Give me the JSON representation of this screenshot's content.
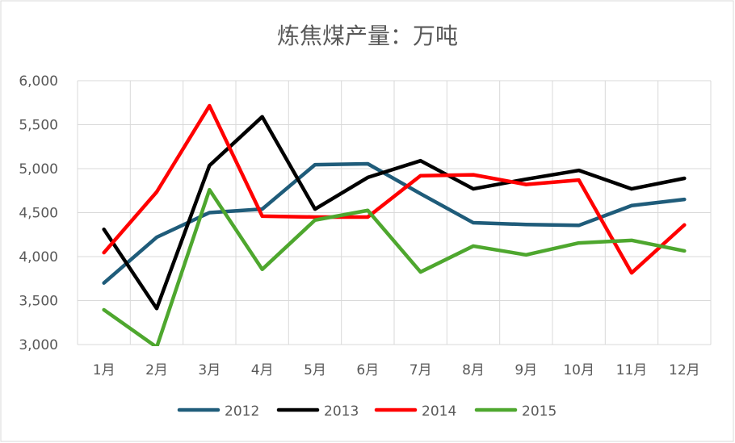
{
  "chart_data": {
    "type": "line",
    "title": "炼焦煤产量：万吨",
    "xlabel": "",
    "ylabel": "",
    "categories": [
      "1月",
      "2月",
      "3月",
      "4月",
      "5月",
      "6月",
      "7月",
      "8月",
      "9月",
      "10月",
      "11月",
      "12月"
    ],
    "ylim": [
      3000,
      6000
    ],
    "yticks": [
      3000,
      3500,
      4000,
      4500,
      5000,
      5500,
      6000
    ],
    "ytick_labels": [
      "3,000",
      "3,500",
      "4,000",
      "4,500",
      "5,000",
      "5,500",
      "6,000"
    ],
    "grid": true,
    "legend_position": "bottom",
    "series": [
      {
        "name": "2012",
        "color": "#1F5C7A",
        "values": [
          3700,
          4220,
          4500,
          4540,
          5045,
          5055,
          4715,
          4385,
          4365,
          4355,
          4580,
          4650
        ]
      },
      {
        "name": "2013",
        "color": "#000000",
        "values": [
          4310,
          3410,
          5035,
          5590,
          4540,
          4900,
          5090,
          4770,
          4880,
          4980,
          4770,
          4890
        ]
      },
      {
        "name": "2014",
        "color": "#FF0000",
        "values": [
          4045,
          4735,
          5715,
          4460,
          4450,
          4450,
          4920,
          4930,
          4820,
          4870,
          3815,
          4360
        ]
      },
      {
        "name": "2015",
        "color": "#4EA72E",
        "values": [
          3395,
          2970,
          4760,
          3855,
          4415,
          4525,
          3825,
          4120,
          4020,
          4155,
          4185,
          4065
        ]
      }
    ]
  }
}
